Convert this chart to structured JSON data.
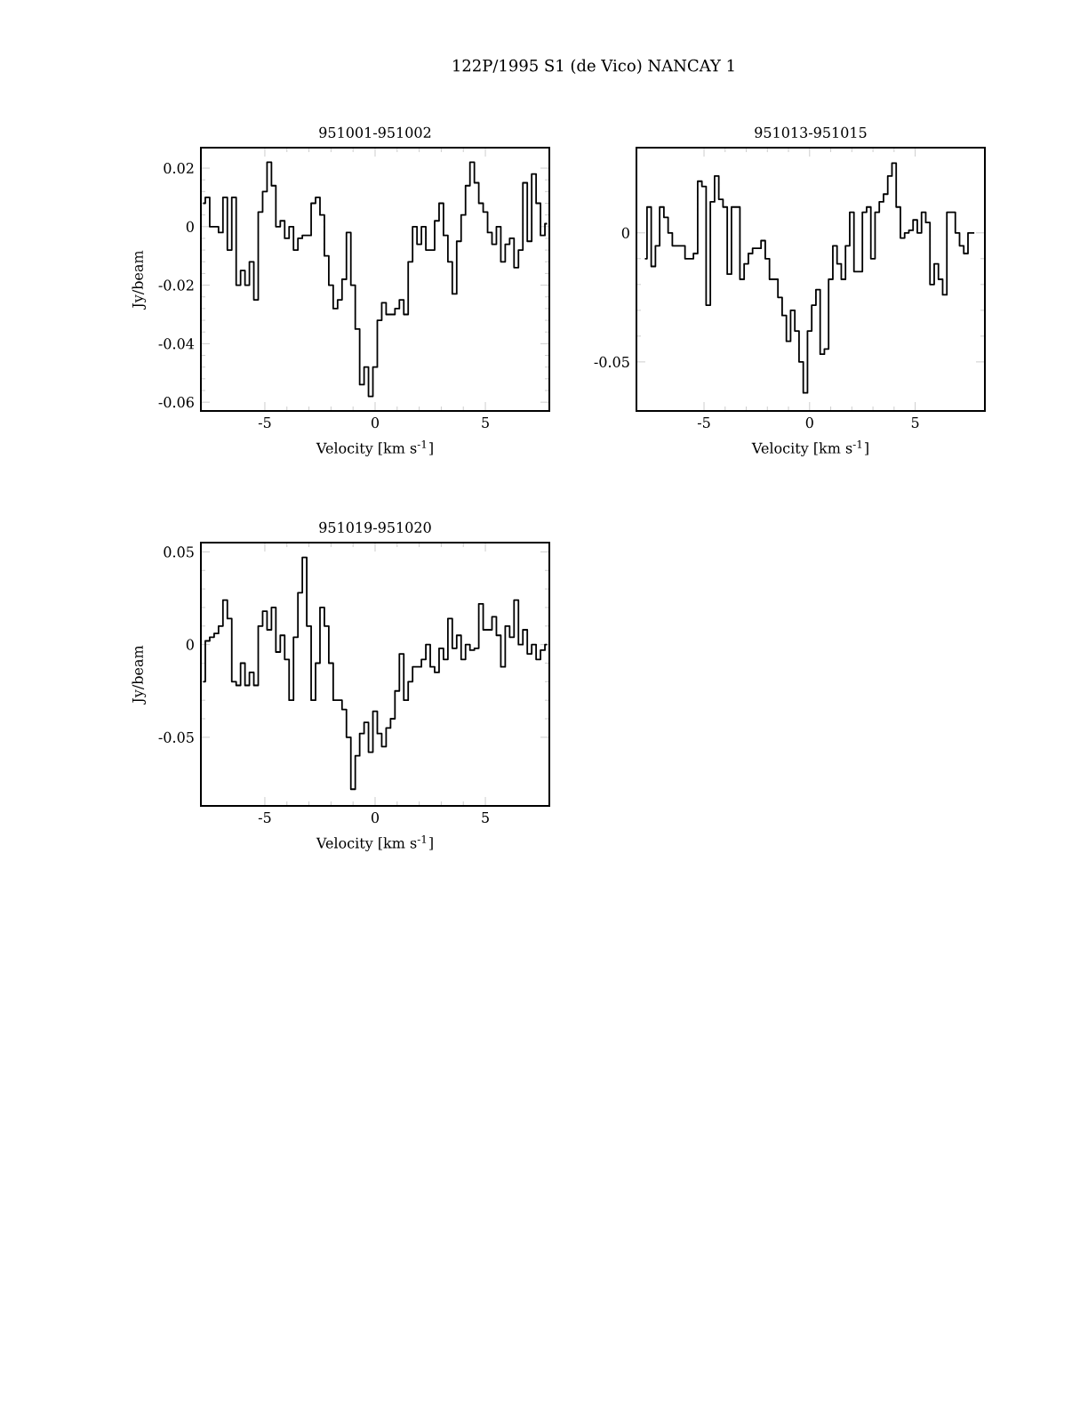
{
  "chart_data": [
    {
      "type": "step",
      "title": "951001-951002",
      "annotations": [
        "122P/1995 S1 (de Vico)   NANCAY    1"
      ],
      "xlabel": "Velocity [km s$^{-1}$]",
      "ylabel": "Jy/beam",
      "color": "#000000",
      "xlim": [
        -7.9,
        7.9
      ],
      "ylim": [
        -0.063,
        0.027
      ],
      "xticks": [
        -5,
        0,
        5
      ],
      "yticks": [
        -0.06,
        -0.04,
        -0.02,
        0,
        0.02
      ],
      "x": [
        -7.8,
        -7.6,
        -7.4,
        -7.2,
        -7.0,
        -6.8,
        -6.6,
        -6.4,
        -6.2,
        -6.0,
        -5.8,
        -5.6,
        -5.4,
        -5.2,
        -5.0,
        -4.8,
        -4.6,
        -4.4,
        -4.2,
        -4.0,
        -3.8,
        -3.6,
        -3.4,
        -3.2,
        -3.0,
        -2.8,
        -2.6,
        -2.4,
        -2.2,
        -2.0,
        -1.8,
        -1.6,
        -1.4,
        -1.2,
        -1.0,
        -0.8,
        -0.6,
        -0.4,
        -0.2,
        0.0,
        0.2,
        0.4,
        0.6,
        0.8,
        1.0,
        1.2,
        1.4,
        1.6,
        1.8,
        2.0,
        2.2,
        2.4,
        2.6,
        2.8,
        3.0,
        3.2,
        3.4,
        3.6,
        3.8,
        4.0,
        4.2,
        4.4,
        4.6,
        4.8,
        5.0,
        5.2,
        5.4,
        5.6,
        5.8,
        6.0,
        6.2,
        6.4,
        6.6,
        6.8,
        7.0,
        7.2,
        7.4,
        7.6,
        7.8
      ],
      "values": [
        0.008,
        0.01,
        0.0,
        0.0,
        -0.002,
        0.01,
        -0.008,
        0.01,
        -0.02,
        -0.015,
        -0.02,
        -0.012,
        -0.025,
        0.005,
        0.012,
        0.022,
        0.014,
        0.0,
        0.002,
        -0.004,
        0.0,
        -0.008,
        -0.004,
        -0.003,
        -0.003,
        0.008,
        0.01,
        0.004,
        -0.01,
        -0.02,
        -0.028,
        -0.025,
        -0.018,
        -0.002,
        -0.02,
        -0.035,
        -0.054,
        -0.048,
        -0.058,
        -0.048,
        -0.032,
        -0.026,
        -0.03,
        -0.03,
        -0.028,
        -0.025,
        -0.03,
        -0.012,
        0.0,
        -0.006,
        0.0,
        -0.008,
        -0.008,
        0.002,
        0.008,
        -0.003,
        -0.012,
        -0.023,
        -0.005,
        0.004,
        0.014,
        0.022,
        0.015,
        0.008,
        0.005,
        -0.002,
        -0.006,
        0.0,
        -0.012,
        -0.006,
        -0.004,
        -0.014,
        -0.008,
        0.015,
        -0.005,
        0.018,
        0.008,
        -0.003,
        0.001
      ]
    },
    {
      "type": "step",
      "title": "951013-951015",
      "xlabel": "Velocity [km s$^{-1}$]",
      "color": "#000000",
      "xlim": [
        -8.2,
        8.3
      ],
      "ylim": [
        -0.069,
        0.033
      ],
      "xticks": [
        -5,
        0,
        5
      ],
      "yticks": [
        -0.05,
        0
      ],
      "x": [
        -7.8,
        -7.6,
        -7.4,
        -7.2,
        -7.0,
        -6.8,
        -6.6,
        -6.4,
        -6.2,
        -6.0,
        -5.8,
        -5.6,
        -5.4,
        -5.2,
        -5.0,
        -4.8,
        -4.6,
        -4.4,
        -4.2,
        -4.0,
        -3.8,
        -3.6,
        -3.4,
        -3.2,
        -3.0,
        -2.8,
        -2.6,
        -2.4,
        -2.2,
        -2.0,
        -1.8,
        -1.6,
        -1.4,
        -1.2,
        -1.0,
        -0.8,
        -0.6,
        -0.4,
        -0.2,
        0.0,
        0.2,
        0.4,
        0.6,
        0.8,
        1.0,
        1.2,
        1.4,
        1.6,
        1.8,
        2.0,
        2.2,
        2.4,
        2.6,
        2.8,
        3.0,
        3.2,
        3.4,
        3.6,
        3.8,
        4.0,
        4.2,
        4.4,
        4.6,
        4.8,
        5.0,
        5.2,
        5.4,
        5.6,
        5.8,
        6.0,
        6.2,
        6.4,
        6.6,
        6.8,
        7.0,
        7.2,
        7.4,
        7.6,
        7.8
      ],
      "values": [
        -0.01,
        0.01,
        -0.013,
        -0.005,
        0.01,
        0.006,
        0.0,
        -0.005,
        -0.005,
        -0.005,
        -0.01,
        -0.01,
        -0.008,
        0.02,
        0.018,
        -0.028,
        0.012,
        0.022,
        0.013,
        0.01,
        -0.016,
        0.01,
        0.01,
        -0.018,
        -0.012,
        -0.008,
        -0.006,
        -0.006,
        -0.003,
        -0.01,
        -0.018,
        -0.018,
        -0.025,
        -0.032,
        -0.042,
        -0.03,
        -0.038,
        -0.05,
        -0.062,
        -0.038,
        -0.028,
        -0.022,
        -0.047,
        -0.045,
        -0.018,
        -0.005,
        -0.012,
        -0.018,
        -0.005,
        0.008,
        -0.015,
        -0.015,
        0.008,
        0.01,
        -0.01,
        0.008,
        0.012,
        0.015,
        0.022,
        0.027,
        0.01,
        -0.002,
        0.0,
        0.001,
        0.005,
        0.0,
        0.008,
        0.004,
        -0.02,
        -0.012,
        -0.018,
        -0.024,
        0.008,
        0.008,
        0.0,
        -0.005,
        -0.008,
        0.0,
        0.0
      ]
    },
    {
      "type": "step",
      "title": "951019-951020",
      "xlabel": "Velocity [km s$^{-1}$]",
      "ylabel": "Jy/beam",
      "color": "#000000",
      "xlim": [
        -7.9,
        7.9
      ],
      "ylim": [
        -0.087,
        0.055
      ],
      "xticks": [
        -5,
        0,
        5
      ],
      "yticks": [
        -0.05,
        0,
        0.05
      ],
      "x": [
        -7.8,
        -7.6,
        -7.4,
        -7.2,
        -7.0,
        -6.8,
        -6.6,
        -6.4,
        -6.2,
        -6.0,
        -5.8,
        -5.6,
        -5.4,
        -5.2,
        -5.0,
        -4.8,
        -4.6,
        -4.4,
        -4.2,
        -4.0,
        -3.8,
        -3.6,
        -3.4,
        -3.2,
        -3.0,
        -2.8,
        -2.6,
        -2.4,
        -2.2,
        -2.0,
        -1.8,
        -1.6,
        -1.4,
        -1.2,
        -1.0,
        -0.8,
        -0.6,
        -0.4,
        -0.2,
        0.0,
        0.2,
        0.4,
        0.6,
        0.8,
        1.0,
        1.2,
        1.4,
        1.6,
        1.8,
        2.0,
        2.2,
        2.4,
        2.6,
        2.8,
        3.0,
        3.2,
        3.4,
        3.6,
        3.8,
        4.0,
        4.2,
        4.4,
        4.6,
        4.8,
        5.0,
        5.2,
        5.4,
        5.6,
        5.8,
        6.0,
        6.2,
        6.4,
        6.6,
        6.8,
        7.0,
        7.2,
        7.4,
        7.6,
        7.8
      ],
      "values": [
        -0.02,
        0.002,
        0.004,
        0.006,
        0.01,
        0.024,
        0.014,
        -0.02,
        -0.022,
        -0.01,
        -0.022,
        -0.015,
        -0.022,
        0.01,
        0.018,
        0.008,
        0.02,
        -0.004,
        0.005,
        -0.008,
        -0.03,
        0.004,
        0.028,
        0.047,
        0.01,
        -0.03,
        -0.01,
        0.02,
        0.01,
        -0.01,
        -0.03,
        -0.03,
        -0.035,
        -0.05,
        -0.078,
        -0.06,
        -0.048,
        -0.042,
        -0.058,
        -0.036,
        -0.048,
        -0.055,
        -0.045,
        -0.04,
        -0.025,
        -0.005,
        -0.03,
        -0.02,
        -0.012,
        -0.012,
        -0.008,
        0.0,
        -0.012,
        -0.015,
        -0.002,
        -0.008,
        0.014,
        -0.002,
        0.005,
        -0.008,
        0.0,
        -0.003,
        -0.002,
        0.022,
        0.008,
        0.008,
        0.015,
        0.005,
        -0.012,
        0.01,
        0.004,
        0.024,
        0.0,
        0.008,
        -0.005,
        0.0,
        -0.008,
        -0.003,
        0.0
      ]
    }
  ]
}
